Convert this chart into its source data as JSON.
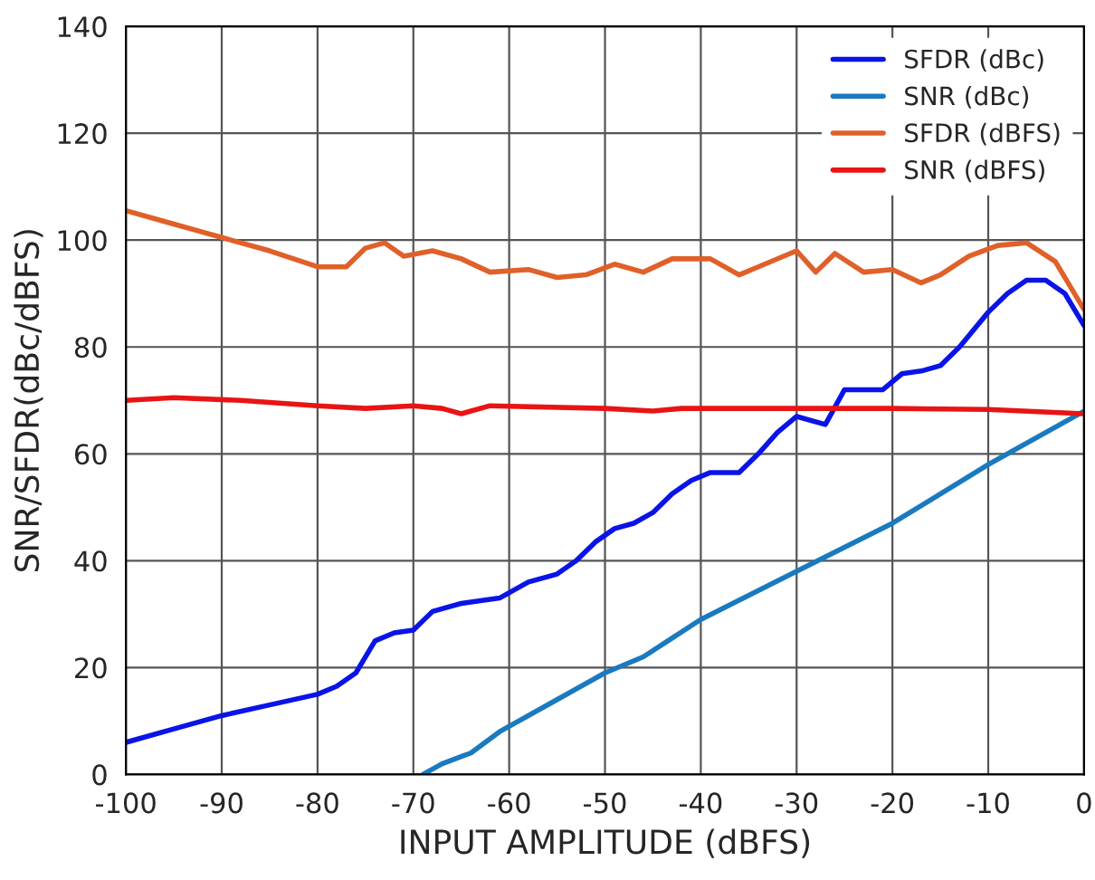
{
  "chart_data": {
    "type": "line",
    "xlabel": "INPUT AMPLITUDE (dBFS)",
    "ylabel": "SNR/SFDR(dBc/dBFS)",
    "xlim": [
      -100,
      0
    ],
    "xticks": [
      -100,
      -90,
      -80,
      -70,
      -60,
      -50,
      -40,
      -30,
      -20,
      -10,
      0
    ],
    "ylim": [
      0,
      140
    ],
    "yticks": [
      0,
      20,
      40,
      60,
      80,
      100,
      120,
      140
    ],
    "grid": true,
    "legend": "top right",
    "line_style": "solid",
    "marker": "none",
    "series": [
      {
        "name": "SFDR (dBc)",
        "color": "#0a14e6",
        "x": [
          -100,
          -95,
          -90,
          -85,
          -80,
          -78,
          -76,
          -74,
          -72,
          -70,
          -68,
          -65,
          -61,
          -58,
          -55,
          -53,
          -51,
          -49,
          -47,
          -45,
          -43,
          -41,
          -39,
          -36,
          -34,
          -32,
          -30,
          -27,
          -25,
          -23,
          -21,
          -19,
          -17,
          -15,
          -13,
          -10,
          -8,
          -6,
          -4,
          -2,
          0
        ],
        "values": [
          6,
          8.5,
          11,
          13,
          15,
          16.5,
          19,
          25,
          26.5,
          27,
          30.5,
          32,
          33,
          36,
          37.5,
          40,
          43.5,
          46,
          47,
          49,
          52.5,
          55,
          56.5,
          56.5,
          60,
          64,
          67,
          65.5,
          72,
          72,
          72,
          75,
          75.5,
          76.5,
          80,
          86.5,
          90,
          92.5,
          92.5,
          90,
          84
        ]
      },
      {
        "name": "SNR (dBc)",
        "color": "#1a7abf",
        "x": [
          -69,
          -67,
          -64,
          -61,
          -55,
          -50,
          -46,
          -43,
          -40,
          -30,
          -20,
          -10,
          0
        ],
        "values": [
          0,
          2,
          4,
          8,
          14,
          19,
          22,
          25.5,
          29,
          38,
          47,
          58,
          68
        ]
      },
      {
        "name": "SFDR (dBFS)",
        "color": "#e0602a",
        "x": [
          -100,
          -95,
          -90,
          -85,
          -80,
          -77,
          -75,
          -73,
          -71,
          -68,
          -65,
          -62,
          -58,
          -55,
          -52,
          -49,
          -46,
          -43,
          -39,
          -36,
          -34,
          -30,
          -28,
          -26,
          -23,
          -20,
          -17,
          -15,
          -12,
          -9,
          -6,
          -3,
          0
        ],
        "values": [
          105.5,
          103,
          100.5,
          98,
          95,
          95,
          98.5,
          99.5,
          97,
          98,
          96.5,
          94,
          94.5,
          93,
          93.5,
          95.5,
          94,
          96.5,
          96.5,
          93.5,
          95,
          98,
          94,
          97.5,
          94,
          94.5,
          92,
          93.5,
          97,
          99,
          99.5,
          96,
          87
        ]
      },
      {
        "name": "SNR (dBFS)",
        "color": "#e81414",
        "x": [
          -100,
          -95,
          -88,
          -80,
          -75,
          -70,
          -67,
          -65,
          -62,
          -50,
          -45,
          -42,
          -20,
          -10,
          0
        ],
        "values": [
          70,
          70.5,
          70,
          69,
          68.5,
          69,
          68.5,
          67.5,
          69,
          68.5,
          68,
          68.5,
          68.5,
          68.3,
          67.5
        ]
      }
    ]
  }
}
